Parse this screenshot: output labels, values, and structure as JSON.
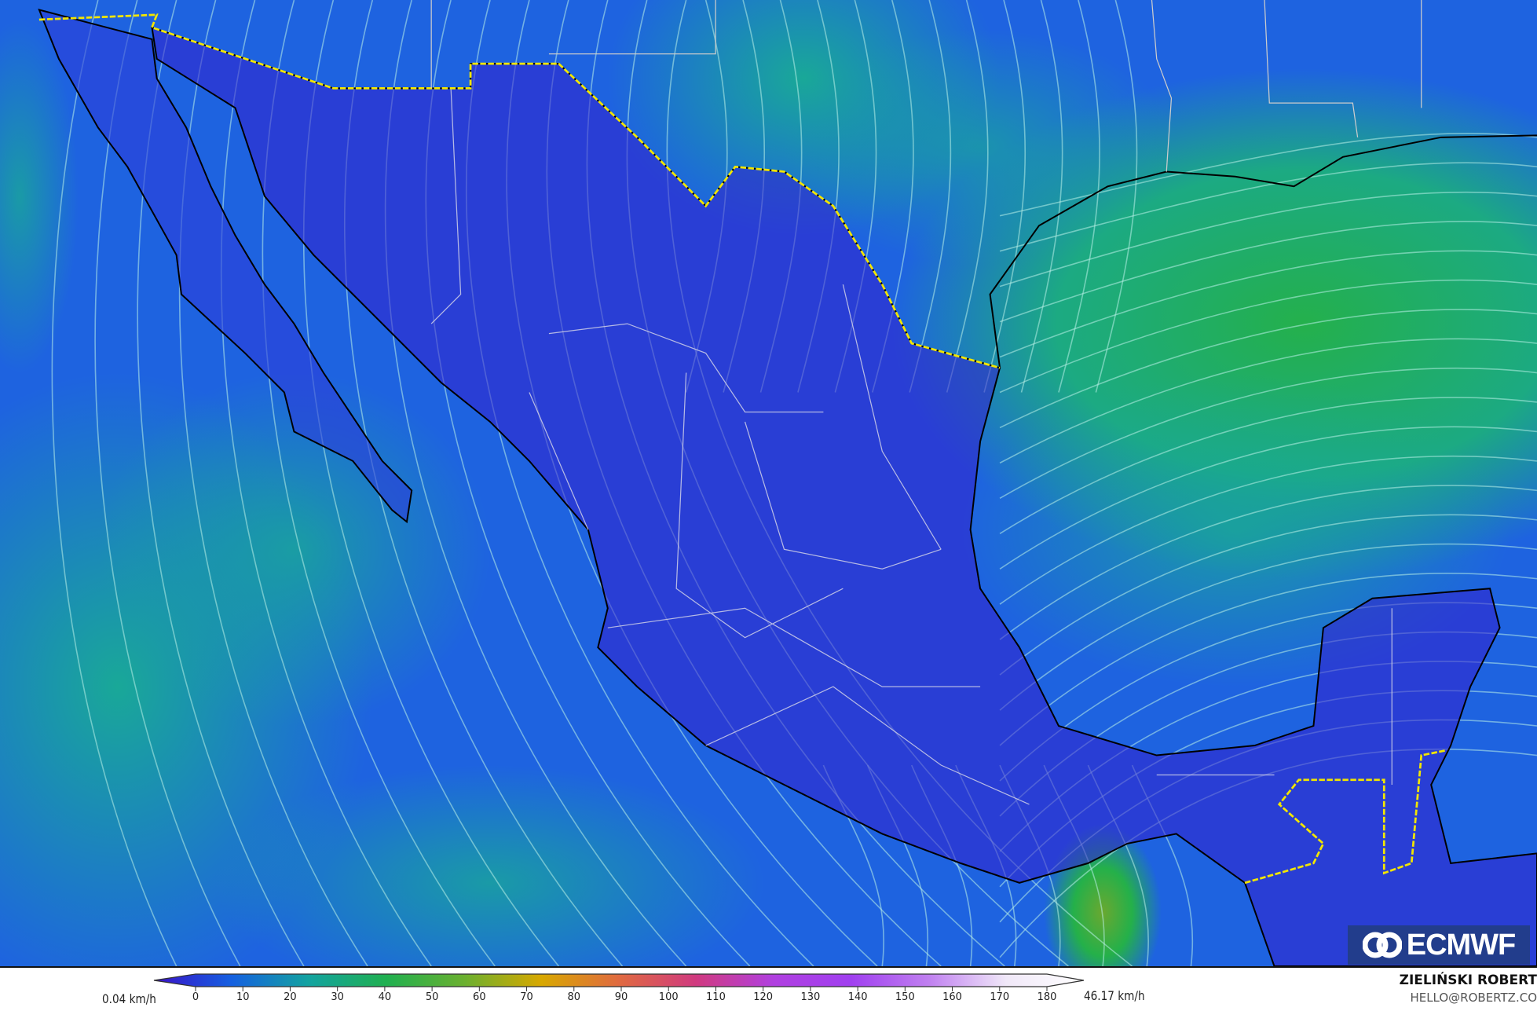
{
  "map": {
    "field": "wind speed",
    "colors": {
      "low": "#3a1fd0",
      "mid": "#1f6fe6",
      "teal": "#1ba59a",
      "green": "#23b04a",
      "border": "#f2e600",
      "coast": "#000000",
      "states": "#d8d8e8"
    }
  },
  "legend": {
    "min_label": "0.04 km/h",
    "max_label": "46.17 km/h",
    "ticks": [
      "0",
      "10",
      "20",
      "30",
      "40",
      "50",
      "60",
      "70",
      "80",
      "90",
      "100",
      "110",
      "120",
      "130",
      "140",
      "150",
      "160",
      "170",
      "180"
    ],
    "gradient": [
      "#3a10c8",
      "#1560e0",
      "#13a3a0",
      "#20b050",
      "#6ab030",
      "#d8a800",
      "#e06a40",
      "#d03a80",
      "#b040e0",
      "#a040f0",
      "#c080f0",
      "#f0e8f8",
      "#ffffff"
    ]
  },
  "logo": {
    "text": "ECMWF",
    "icon": "ecmwf-logo-icon"
  },
  "credit": {
    "name": "ZIELIŃSKI ROBERT",
    "email": "HELLO@ROBERTZ.CO"
  }
}
